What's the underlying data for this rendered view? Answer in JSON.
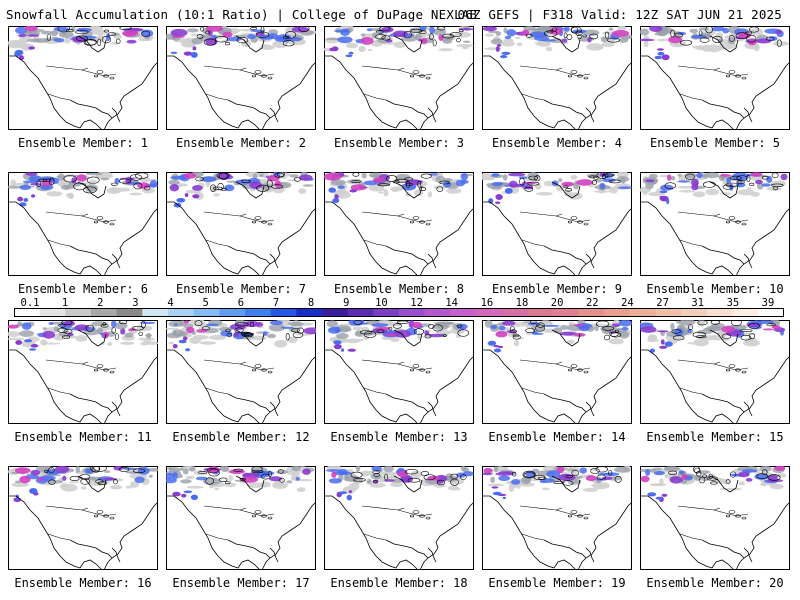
{
  "header": {
    "title_left": "Snowfall Accumulation (10:1 Ratio) | College of DuPage NEXLAB",
    "title_right": "06Z GEFS | F318 Valid: 12Z SAT JUN 21 2025"
  },
  "panel_label_prefix": "Ensemble Member: ",
  "members": [
    1,
    2,
    3,
    4,
    5,
    6,
    7,
    8,
    9,
    10,
    11,
    12,
    13,
    14,
    15,
    16,
    17,
    18,
    19,
    20
  ],
  "colorbar": {
    "labels": [
      "0.1",
      "1",
      "2",
      "3",
      "4",
      "5",
      "6",
      "7",
      "8",
      "9",
      "10",
      "12",
      "14",
      "16",
      "18",
      "20",
      "22",
      "24",
      "27",
      "31",
      "35",
      "39"
    ],
    "colors": [
      "#ffffff",
      "#e4e4e4",
      "#c8c8c8",
      "#a8a8a8",
      "#8a8a8a",
      "#cde8f4",
      "#a9d2f4",
      "#85bcf4",
      "#5f9ef0",
      "#4080ec",
      "#2456e8",
      "#1830c8",
      "#3a1c9c",
      "#5a2cb0",
      "#7a40c0",
      "#9a50cc",
      "#b458d0",
      "#c860cc",
      "#d468bc",
      "#d870a8",
      "#dc7894",
      "#e08090",
      "#e4908c",
      "#e8a090",
      "#ecb098",
      "#f0c0a8",
      "#f4d0bc",
      "#f8e0d0",
      "#fcf0e4",
      "#ffffff"
    ]
  },
  "colors": {
    "snow_light": "#d0d0d0",
    "snow_mid": "#9aa0aa",
    "snow_blue": "#4a6cf0",
    "snow_purple": "#8a3cd0",
    "snow_magenta": "#d040c0",
    "map_outline": "#000000"
  }
}
